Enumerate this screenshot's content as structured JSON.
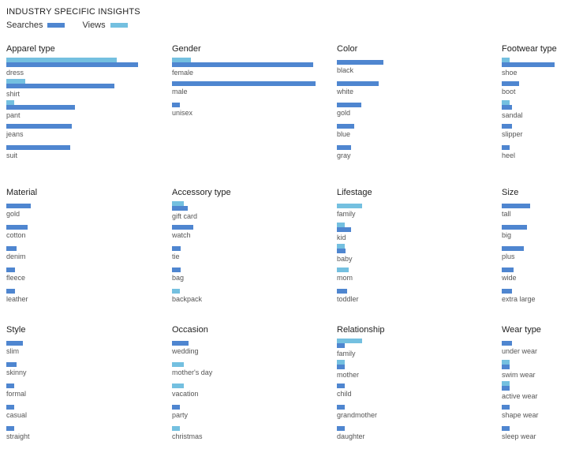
{
  "title": "INDUSTRY SPECIFIC INSIGHTS",
  "legend": {
    "searches": "Searches",
    "views": "Views"
  },
  "colors": {
    "searches": "#4F86D0",
    "views": "#74C0E0"
  },
  "chart_data": [
    {
      "type": "bar",
      "title": "Apparel type",
      "series_names": [
        "Views",
        "Searches"
      ],
      "categories": [
        "dress",
        "shirt",
        "pant",
        "jeans",
        "suit"
      ],
      "views": [
        100,
        17,
        7,
        0,
        0
      ],
      "searches": [
        119,
        98,
        62,
        59,
        58
      ]
    },
    {
      "type": "bar",
      "title": "Gender",
      "series_names": [
        "Views",
        "Searches"
      ],
      "categories": [
        "female",
        "male",
        "unisex"
      ],
      "views": [
        17,
        0,
        0
      ],
      "searches": [
        128,
        130,
        7
      ]
    },
    {
      "type": "bar",
      "title": "Color",
      "series_names": [
        "Views",
        "Searches"
      ],
      "categories": [
        "black",
        "white",
        "gold",
        "blue",
        "gray"
      ],
      "views": [
        0,
        0,
        0,
        0,
        0
      ],
      "searches": [
        42,
        38,
        22,
        16,
        13
      ]
    },
    {
      "type": "bar",
      "title": "Footwear type",
      "series_names": [
        "Views",
        "Searches"
      ],
      "categories": [
        "shoe",
        "boot",
        "sandal",
        "slipper",
        "heel"
      ],
      "views": [
        7,
        0,
        7,
        0,
        0
      ],
      "searches": [
        48,
        16,
        9,
        9,
        7
      ]
    },
    {
      "type": "bar",
      "title": "Material",
      "series_names": [
        "Views",
        "Searches"
      ],
      "categories": [
        "gold",
        "cotton",
        "denim",
        "fleece",
        "leather"
      ],
      "views": [
        0,
        0,
        0,
        0,
        0
      ],
      "searches": [
        22,
        19,
        9,
        8,
        8
      ]
    },
    {
      "type": "bar",
      "title": "Accessory type",
      "series_names": [
        "Views",
        "Searches"
      ],
      "categories": [
        "gift card",
        "watch",
        "tie",
        "bag",
        "backpack"
      ],
      "views": [
        11,
        0,
        0,
        0,
        7
      ],
      "searches": [
        14,
        19,
        8,
        8,
        0
      ]
    },
    {
      "type": "bar",
      "title": "Lifestage",
      "series_names": [
        "Views",
        "Searches"
      ],
      "categories": [
        "family",
        "kid",
        "baby",
        "mom",
        "toddler"
      ],
      "views": [
        23,
        7,
        7,
        11,
        0
      ],
      "searches": [
        0,
        13,
        8,
        0,
        9
      ]
    },
    {
      "type": "bar",
      "title": "Size",
      "series_names": [
        "Views",
        "Searches"
      ],
      "categories": [
        "tall",
        "big",
        "plus",
        "wide",
        "extra large"
      ],
      "views": [
        0,
        0,
        0,
        0,
        0
      ],
      "searches": [
        26,
        23,
        20,
        11,
        9
      ]
    },
    {
      "type": "bar",
      "title": "Style",
      "series_names": [
        "Views",
        "Searches"
      ],
      "categories": [
        "slim",
        "skinny",
        "formal",
        "casual",
        "straight"
      ],
      "views": [
        0,
        0,
        0,
        0,
        0
      ],
      "searches": [
        15,
        9,
        7,
        7,
        7
      ]
    },
    {
      "type": "bar",
      "title": "Occasion",
      "series_names": [
        "Views",
        "Searches"
      ],
      "categories": [
        "wedding",
        "mother's day",
        "vacation",
        "party",
        "christmas"
      ],
      "views": [
        0,
        11,
        11,
        0,
        7
      ],
      "searches": [
        15,
        0,
        0,
        7,
        0
      ]
    },
    {
      "type": "bar",
      "title": "Relationship",
      "series_names": [
        "Views",
        "Searches"
      ],
      "categories": [
        "family",
        "mother",
        "child",
        "grandmother",
        "daughter"
      ],
      "views": [
        23,
        7,
        0,
        0,
        0
      ],
      "searches": [
        7,
        7,
        7,
        7,
        7
      ]
    },
    {
      "type": "bar",
      "title": "Wear type",
      "series_names": [
        "Views",
        "Searches"
      ],
      "categories": [
        "under wear",
        "swim wear",
        "active wear",
        "shape wear",
        "sleep wear"
      ],
      "views": [
        0,
        7,
        7,
        0,
        0
      ],
      "searches": [
        9,
        7,
        7,
        7,
        7
      ]
    }
  ]
}
